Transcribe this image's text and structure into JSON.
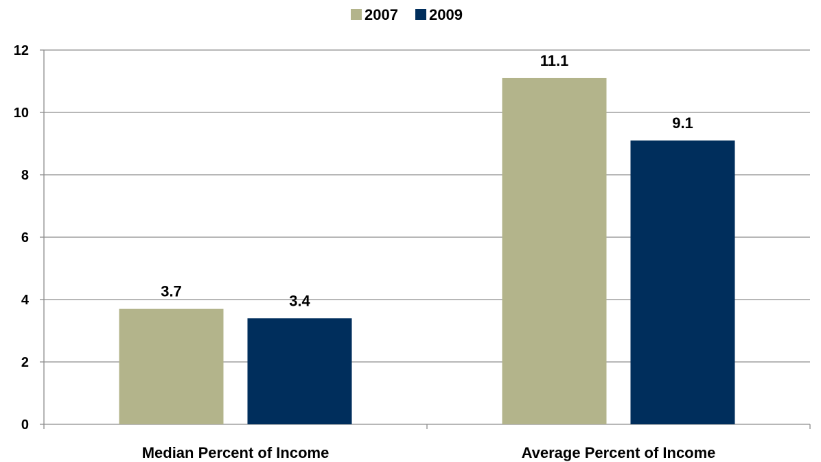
{
  "chart_data": {
    "type": "bar",
    "title": "",
    "xlabel": "",
    "ylabel": "",
    "categories": [
      "Median Percent of Income",
      "Average Percent of Income"
    ],
    "series": [
      {
        "name": "2007",
        "values": [
          3.7,
          11.1
        ],
        "value_labels": [
          "3.7",
          "11.1"
        ],
        "color": "#b3b48b"
      },
      {
        "name": "2009",
        "values": [
          3.4,
          9.1
        ],
        "value_labels": [
          "3.4",
          "9.1"
        ],
        "color": "#002e5c"
      }
    ],
    "ylim": [
      0,
      12
    ],
    "yticks": [
      0,
      2,
      4,
      6,
      8,
      10,
      12
    ],
    "ytick_labels": [
      "0",
      "2",
      "4",
      "6",
      "8",
      "10",
      "12"
    ],
    "grid": true,
    "legend_position": "top-center",
    "gridline_color": "#8c8c8c",
    "axis_color": "#8c8c8c"
  }
}
